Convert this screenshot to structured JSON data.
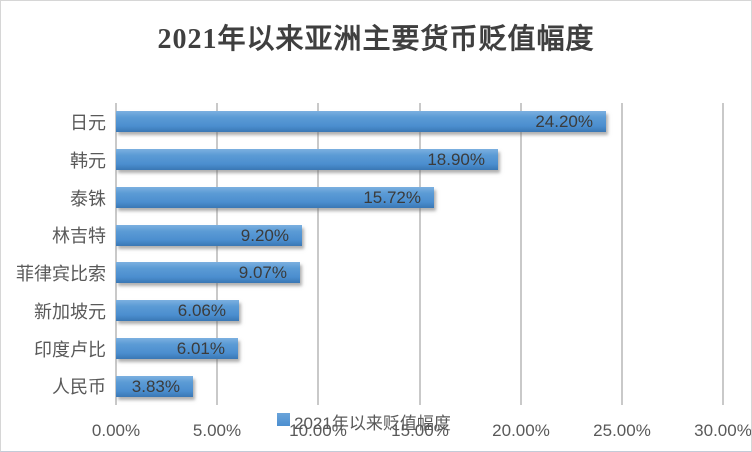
{
  "chart_data": {
    "type": "bar",
    "orientation": "horizontal",
    "title": "2021年以来亚洲主要货币贬值幅度",
    "categories": [
      "日元",
      "韩元",
      "泰铢",
      "林吉特",
      "菲律宾比索",
      "新加坡元",
      "印度卢比",
      "人民币"
    ],
    "values": [
      24.2,
      18.9,
      15.72,
      9.2,
      9.07,
      6.06,
      6.01,
      3.83
    ],
    "value_labels": [
      "24.20%",
      "18.90%",
      "15.72%",
      "9.20%",
      "9.07%",
      "6.06%",
      "6.01%",
      "3.83%"
    ],
    "xlabel": "",
    "ylabel": "",
    "x_axis": {
      "min": 0,
      "max": 30,
      "tick_values": [
        0,
        5,
        10,
        15,
        20,
        25,
        30
      ],
      "tick_labels": [
        "0.00%",
        "5.00%",
        "10.00%",
        "15.00%",
        "20.00%",
        "25.00%",
        "30.00%"
      ]
    },
    "grid": true,
    "legend_position": "bottom",
    "legend": [
      {
        "label": "2021年以来贬值幅度",
        "color": "#5b9bd5"
      }
    ],
    "colors": {
      "bar": "#5b9bd5",
      "bar_gradient_top": "#7cb0e0",
      "bar_gradient_bottom": "#3a77b4",
      "gridline": "#c9c9c9",
      "axis_text": "#595959",
      "value_text": "#3b3b3b",
      "title_text": "#3f3f3f"
    }
  }
}
